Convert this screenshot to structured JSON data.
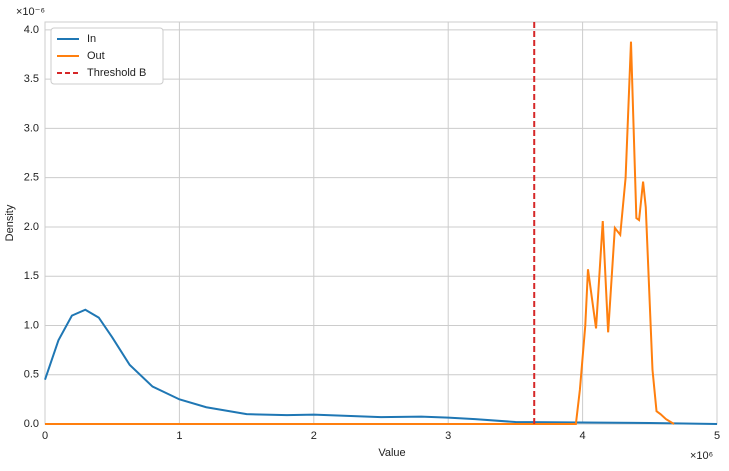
{
  "chart_data": {
    "type": "line",
    "xlabel": "Value",
    "ylabel": "Density",
    "x_offset_label": "×10⁶",
    "y_offset_label": "×10⁻⁶",
    "xlim": [
      0,
      5
    ],
    "ylim": [
      0,
      4.08
    ],
    "xticks": [
      0,
      1,
      2,
      3,
      4,
      5
    ],
    "yticks": [
      {
        "value": 0,
        "label": "0.0"
      },
      {
        "value": 0.5,
        "label": "0.5"
      },
      {
        "value": 1,
        "label": "1.0"
      },
      {
        "value": 1.5,
        "label": "1.5"
      },
      {
        "value": 2,
        "label": "2.0"
      },
      {
        "value": 2.5,
        "label": "2.5"
      },
      {
        "value": 3,
        "label": "3.0"
      },
      {
        "value": 3.5,
        "label": "3.5"
      },
      {
        "value": 4,
        "label": "4.0"
      }
    ],
    "grid": true,
    "legend": "upper left",
    "series": [
      {
        "name": "In",
        "color": "#1f77b4",
        "x": [
          0,
          0.1,
          0.2,
          0.3,
          0.4,
          0.5,
          0.63,
          0.8,
          1.0,
          1.2,
          1.5,
          1.8,
          2.0,
          2.3,
          2.5,
          2.8,
          3.0,
          3.2,
          3.5,
          4.0,
          4.5,
          5.0
        ],
        "values": [
          0.45,
          0.85,
          1.1,
          1.16,
          1.08,
          0.88,
          0.6,
          0.38,
          0.25,
          0.17,
          0.1,
          0.09,
          0.095,
          0.08,
          0.07,
          0.075,
          0.065,
          0.05,
          0.02,
          0.015,
          0.01,
          0.0
        ]
      },
      {
        "name": "Out",
        "color": "#ff7f0e",
        "x": [
          0,
          2,
          3.95,
          3.98,
          4.02,
          4.04,
          4.1,
          4.15,
          4.19,
          4.24,
          4.28,
          4.32,
          4.36,
          4.4,
          4.42,
          4.45,
          4.47,
          4.52,
          4.55,
          4.58,
          4.62,
          4.68
        ],
        "values": [
          0,
          0,
          0,
          0.35,
          1.0,
          1.57,
          0.97,
          2.06,
          0.93,
          1.99,
          1.92,
          2.5,
          3.88,
          2.09,
          2.07,
          2.46,
          2.2,
          0.55,
          0.13,
          0.1,
          0.05,
          0
        ]
      }
    ],
    "threshold": {
      "name": "Threshold B",
      "color": "#d62728",
      "x": 3.64
    }
  }
}
